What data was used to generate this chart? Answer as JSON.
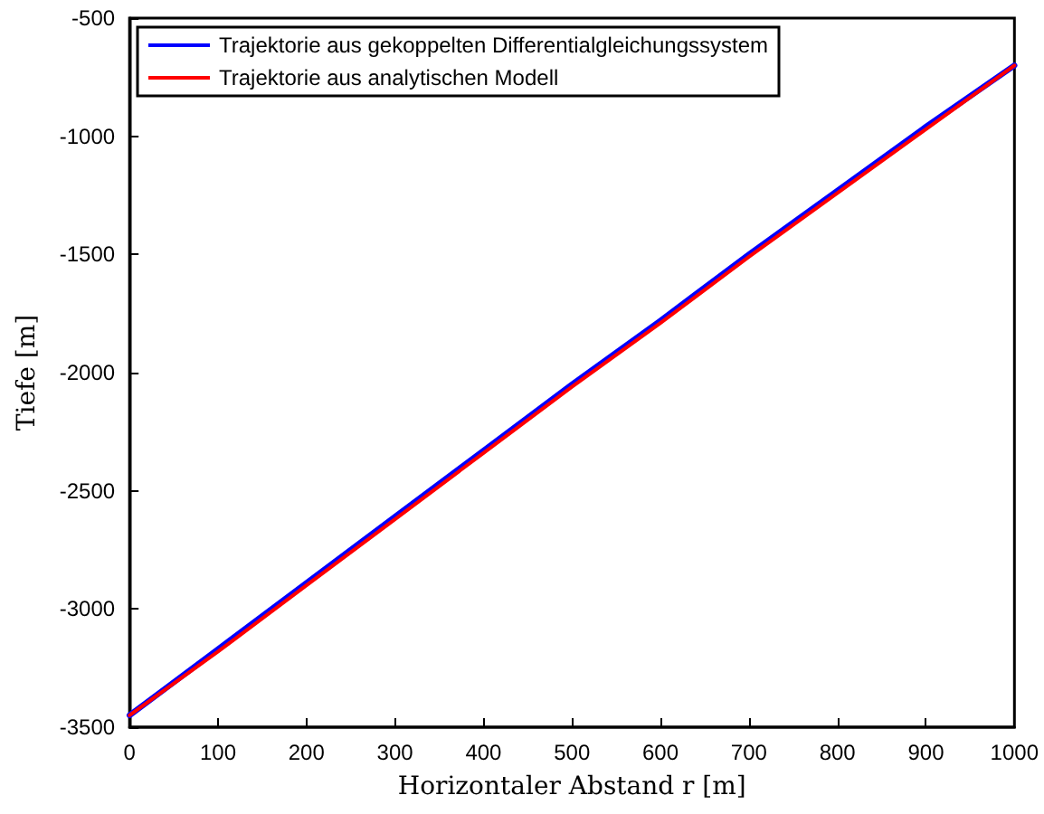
{
  "chart_data": {
    "type": "line",
    "xlabel": "Horizontaler Abstand r [m]",
    "ylabel": "Tiefe [m]",
    "x": [
      0,
      100,
      200,
      300,
      400,
      500,
      600,
      700,
      800,
      900,
      1000
    ],
    "series": [
      {
        "name": "Trajektorie aus gekoppelten Differentialgleichungssystem",
        "color": "#0000ff",
        "values": [
          -3450,
          -3170,
          -2890,
          -2610,
          -2330,
          -2050,
          -1780,
          -1500,
          -1230,
          -960,
          -700
        ]
      },
      {
        "name": "Trajektorie aus analytischen Modell",
        "color": "#ff0000",
        "values": [
          -3450,
          -3180,
          -2900,
          -2620,
          -2340,
          -2060,
          -1790,
          -1510,
          -1240,
          -970,
          -700
        ]
      }
    ],
    "xlim": [
      0,
      1000
    ],
    "xticks": [
      0,
      100,
      200,
      300,
      400,
      500,
      600,
      700,
      800,
      900,
      1000
    ],
    "ylim": [
      -3500,
      -500
    ],
    "yticks": [
      -3500,
      -3000,
      -2500,
      -2000,
      -1500,
      -1000,
      -500
    ],
    "grid": false,
    "legend": "top left",
    "marker": "none",
    "line_style": "solid"
  }
}
